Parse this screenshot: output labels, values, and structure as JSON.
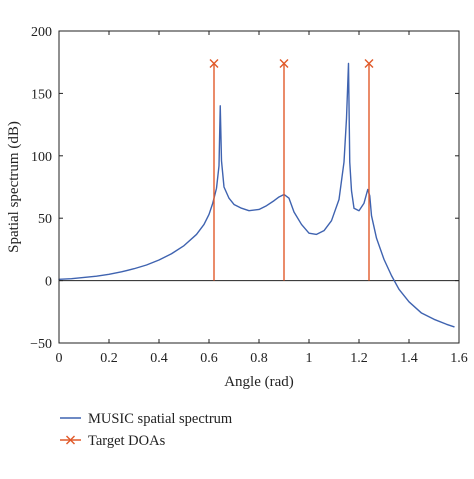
{
  "chart_data": {
    "type": "line",
    "title": "",
    "xlabel": "Angle (rad)",
    "ylabel": "Spatial spectrum (dB)",
    "xlim": [
      0,
      1.6
    ],
    "ylim": [
      -50,
      200
    ],
    "xticks": [
      0,
      0.2,
      0.4,
      0.6,
      0.8,
      1,
      1.2,
      1.4,
      1.6
    ],
    "xtick_labels": [
      "0",
      "0.2",
      "0.4",
      "0.6",
      "0.8",
      "1",
      "1.2",
      "1.4",
      "1.6"
    ],
    "yticks": [
      -50,
      0,
      50,
      100,
      150,
      200
    ],
    "ytick_labels": [
      "−50",
      "0",
      "50",
      "100",
      "150",
      "200"
    ],
    "grid": false,
    "zero_line": true,
    "legend_position": "below",
    "colors": {
      "music": "#3f63b0",
      "target": "#e05a2a",
      "axis": "#222222"
    },
    "series": [
      {
        "name": "MUSIC spatial spectrum",
        "style": "line",
        "x": [
          0,
          0.05,
          0.1,
          0.15,
          0.2,
          0.25,
          0.3,
          0.35,
          0.4,
          0.45,
          0.5,
          0.55,
          0.58,
          0.6,
          0.615,
          0.63,
          0.64,
          0.645,
          0.65,
          0.66,
          0.68,
          0.7,
          0.73,
          0.76,
          0.8,
          0.83,
          0.86,
          0.88,
          0.9,
          0.92,
          0.94,
          0.97,
          1.0,
          1.03,
          1.06,
          1.09,
          1.12,
          1.14,
          1.15,
          1.158,
          1.163,
          1.17,
          1.18,
          1.2,
          1.22,
          1.235,
          1.243,
          1.25,
          1.27,
          1.3,
          1.33,
          1.36,
          1.4,
          1.45,
          1.5,
          1.55,
          1.58
        ],
        "y": [
          1,
          1.5,
          2.5,
          3.5,
          5,
          7,
          9.5,
          12.5,
          16.5,
          21.5,
          28,
          37,
          45,
          53,
          62,
          74,
          92,
          140,
          96,
          75,
          66,
          61,
          58,
          56,
          57,
          60,
          64,
          67,
          69,
          66,
          55,
          45,
          38,
          37,
          40,
          48,
          65,
          95,
          130,
          174,
          95,
          72,
          58,
          56,
          62,
          73,
          68,
          52,
          34,
          17,
          4,
          -7,
          -17,
          -26,
          -31,
          -35,
          -37
        ]
      },
      {
        "name": "Target DOAs",
        "style": "stem",
        "x": [
          0.62,
          0.9,
          1.24
        ],
        "y": [
          174,
          174,
          174
        ]
      }
    ]
  }
}
